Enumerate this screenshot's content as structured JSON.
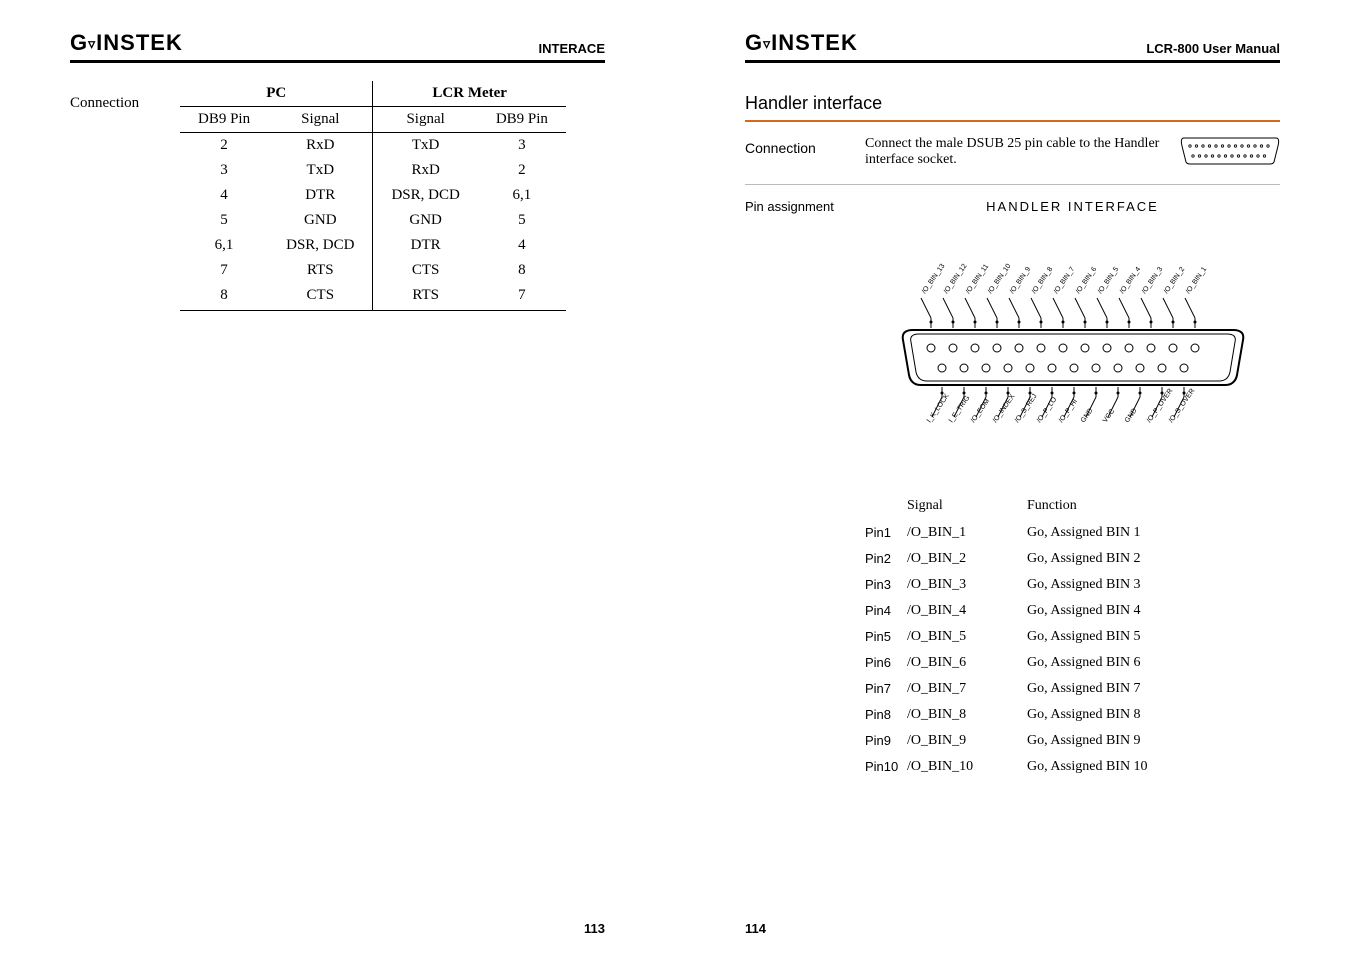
{
  "brand": "GWINSTEK",
  "left": {
    "header_right": "INTERACE",
    "page_num": "113",
    "connection_label": "Connection",
    "group_headers": [
      "PC",
      "LCR Meter"
    ],
    "sub_headers": [
      "DB9 Pin",
      "Signal",
      "Signal",
      "DB9 Pin"
    ],
    "rows": [
      [
        "2",
        "RxD",
        "TxD",
        "3"
      ],
      [
        "3",
        "TxD",
        "RxD",
        "2"
      ],
      [
        "4",
        "DTR",
        "DSR, DCD",
        "6,1"
      ],
      [
        "5",
        "GND",
        "GND",
        "5"
      ],
      [
        "6,1",
        "DSR, DCD",
        "DTR",
        "4"
      ],
      [
        "7",
        "RTS",
        "CTS",
        "8"
      ],
      [
        "8",
        "CTS",
        "RTS",
        "7"
      ]
    ]
  },
  "right": {
    "header_right": "LCR-800 User Manual",
    "page_num": "114",
    "section_title": "Handler interface",
    "connection_label": "Connection",
    "connection_text": "Connect the male DSUB 25 pin cable to the Handler interface socket.",
    "pin_assignment_label": "Pin assignment",
    "handler_title": "HANDLER  INTERFACE",
    "top_labels": [
      "/O_BIN_13",
      "/O_BIN_12",
      "/O_BIN_11",
      "/O_BIN_10",
      "/O_BIN_9",
      "/O_BIN_8",
      "/O_BIN_7",
      "/O_BIN_6",
      "/O_BIN_5",
      "/O_BIN_4",
      "/O_BIN_3",
      "/O_BIN_2",
      "/O_BIN_1"
    ],
    "bottom_labels": [
      "I_K_LOCK",
      "I_E_TRIG",
      "/O_EOM",
      "/O_INDEX",
      "/O_S_REJ",
      "/O_P_LO",
      "/O_P_HI",
      "GND",
      "VCC",
      "GND",
      "/O_P_OVER",
      "/O_S_OVER"
    ],
    "pin_list_headers": [
      "Signal",
      "Function"
    ],
    "pin_list": [
      {
        "pin": "Pin1",
        "signal": "/O_BIN_1",
        "func": "Go, Assigned BIN 1"
      },
      {
        "pin": "Pin2",
        "signal": "/O_BIN_2",
        "func": "Go, Assigned BIN 2"
      },
      {
        "pin": "Pin3",
        "signal": "/O_BIN_3",
        "func": "Go, Assigned BIN 3"
      },
      {
        "pin": "Pin4",
        "signal": "/O_BIN_4",
        "func": "Go, Assigned BIN 4"
      },
      {
        "pin": "Pin5",
        "signal": "/O_BIN_5",
        "func": "Go, Assigned BIN 5"
      },
      {
        "pin": "Pin6",
        "signal": "/O_BIN_6",
        "func": "Go, Assigned BIN 6"
      },
      {
        "pin": "Pin7",
        "signal": "/O_BIN_7",
        "func": "Go, Assigned BIN 7"
      },
      {
        "pin": "Pin8",
        "signal": "/O_BIN_8",
        "func": "Go, Assigned BIN 8"
      },
      {
        "pin": "Pin9",
        "signal": "/O_BIN_9",
        "func": "Go, Assigned BIN 9"
      },
      {
        "pin": "Pin10",
        "signal": "/O_BIN_10",
        "func": "Go, Assigned BIN 10"
      }
    ],
    "colors": {
      "accent": "#d2691e"
    }
  }
}
